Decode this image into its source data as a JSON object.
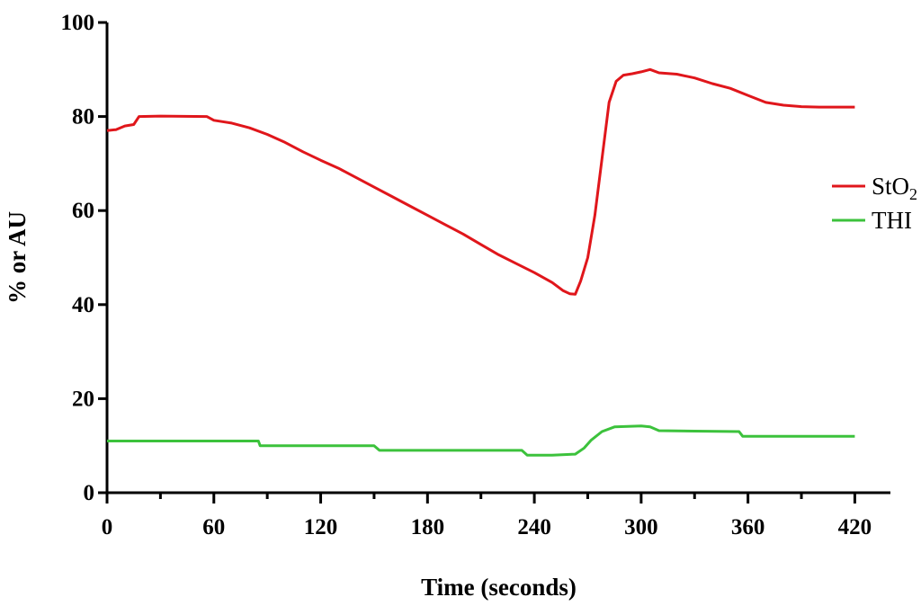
{
  "chart_data": {
    "type": "line",
    "title": "",
    "xlabel": "Time (seconds)",
    "ylabel": "% or AU",
    "xlim": [
      0,
      440
    ],
    "ylim": [
      0,
      100
    ],
    "xticks": [
      0,
      60,
      120,
      180,
      240,
      300,
      360,
      420
    ],
    "yticks": [
      0,
      20,
      40,
      60,
      80,
      100
    ],
    "grid": false,
    "legend_position": "right",
    "series": [
      {
        "name_main": "StO",
        "name_sub": "2",
        "color": "#e0161b",
        "x": [
          0,
          5,
          10,
          15,
          18,
          30,
          56,
          60,
          70,
          80,
          90,
          100,
          110,
          120,
          130,
          140,
          150,
          160,
          170,
          180,
          190,
          200,
          210,
          220,
          230,
          240,
          250,
          256,
          260,
          263,
          266,
          270,
          274,
          278,
          282,
          286,
          290,
          295,
          300,
          305,
          310,
          320,
          330,
          340,
          350,
          360,
          370,
          380,
          390,
          400,
          410,
          420
        ],
        "y": [
          77,
          77.2,
          78,
          78.3,
          80,
          80.1,
          80,
          79.2,
          78.6,
          77.6,
          76.2,
          74.5,
          72.5,
          70.7,
          69,
          67,
          65,
          63,
          61,
          59,
          57,
          55,
          52.8,
          50.6,
          48.7,
          46.8,
          44.7,
          43,
          42.3,
          42.2,
          45,
          50,
          59,
          71,
          83,
          87.5,
          88.8,
          89.1,
          89.5,
          90,
          89.3,
          89,
          88.2,
          87,
          86,
          84.5,
          83,
          82.4,
          82.1,
          82,
          82,
          82
        ]
      },
      {
        "name": "THI",
        "color": "#3cc23c",
        "x": [
          0,
          20,
          40,
          60,
          85,
          86,
          100,
          150,
          153,
          160,
          200,
          233,
          236,
          250,
          263,
          268,
          272,
          278,
          285,
          300,
          305,
          310,
          330,
          355,
          357,
          380,
          420
        ],
        "y": [
          11,
          11,
          11,
          11,
          11,
          10,
          10,
          10,
          9,
          9,
          9,
          9,
          8,
          8,
          8.2,
          9.5,
          11.2,
          13,
          14,
          14.2,
          14,
          13.2,
          13.1,
          13,
          12,
          12,
          12
        ]
      }
    ]
  }
}
